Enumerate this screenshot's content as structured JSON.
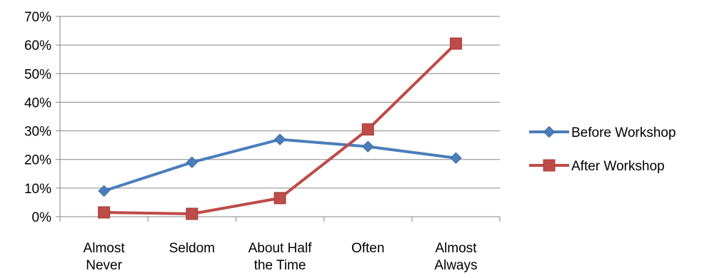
{
  "chart_data": {
    "type": "line",
    "title": "",
    "xlabel": "",
    "ylabel": "",
    "categories": [
      [
        "Almost",
        "Never"
      ],
      [
        "Seldom"
      ],
      [
        "About Half",
        "the Time"
      ],
      [
        "Often"
      ],
      [
        "Almost",
        "Always"
      ]
    ],
    "ylim": [
      0,
      70
    ],
    "yticks": [
      "0%",
      "10%",
      "20%",
      "30%",
      "40%",
      "50%",
      "60%",
      "70%"
    ],
    "grid": true,
    "legend_position": "right",
    "series": [
      {
        "name": "Before Workshop",
        "values": [
          9,
          19,
          27,
          24.5,
          20.5
        ],
        "color": "#4a7ebb",
        "marker": "diamond"
      },
      {
        "name": "After Workshop",
        "values": [
          1.5,
          1,
          6.5,
          30.5,
          60.5
        ],
        "color": "#be4b48",
        "marker": "square"
      }
    ]
  }
}
